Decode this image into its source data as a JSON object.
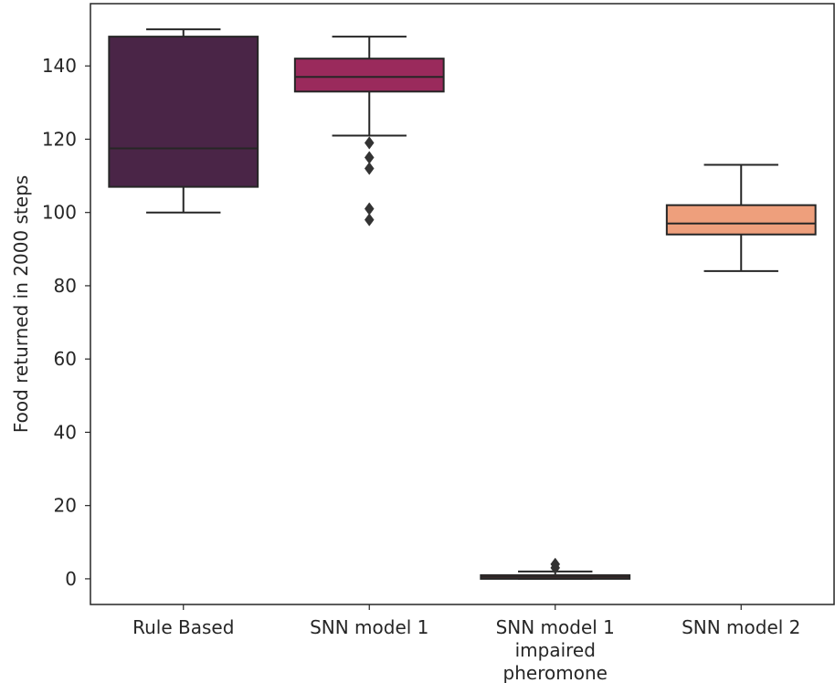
{
  "chart_data": {
    "type": "box",
    "title": "",
    "xlabel": "",
    "ylabel": "Food returned in 2000 steps",
    "ylim": [
      -7,
      157
    ],
    "yticks": [
      0,
      20,
      40,
      60,
      80,
      100,
      120,
      140
    ],
    "grid": false,
    "categories": [
      [
        "Rule Based"
      ],
      [
        "SNN model 1"
      ],
      [
        "SNN model 1",
        "impaired",
        "pheromone"
      ],
      [
        "SNN model 2"
      ]
    ],
    "boxes": [
      {
        "whisker_low": 100,
        "q1": 107,
        "median": 117.5,
        "q3": 148,
        "whisker_high": 150,
        "outliers": [],
        "color": "#4a2547"
      },
      {
        "whisker_low": 121,
        "q1": 133,
        "median": 137,
        "q3": 142,
        "whisker_high": 148,
        "outliers": [
          119,
          115,
          112,
          101,
          98
        ],
        "color": "#9a2a5c"
      },
      {
        "whisker_low": 0,
        "q1": 0,
        "median": 0.5,
        "q3": 1,
        "whisker_high": 2,
        "outliers": [
          3,
          4
        ],
        "color": "#e0484b"
      },
      {
        "whisker_low": 84,
        "q1": 94,
        "median": 97,
        "q3": 102,
        "whisker_high": 113,
        "outliers": [],
        "color": "#ee9f7c"
      }
    ]
  }
}
